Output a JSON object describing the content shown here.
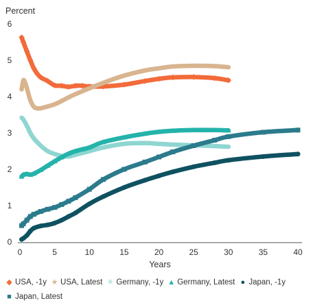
{
  "chart_data": {
    "type": "line",
    "ylabel": "Percent",
    "xlabel": "Years",
    "xlim": [
      0,
      40
    ],
    "ylim": [
      0,
      6
    ],
    "xticks": [
      0,
      5,
      10,
      15,
      20,
      25,
      30,
      35,
      40
    ],
    "yticks": [
      0,
      1,
      2,
      3,
      4,
      5,
      6
    ],
    "grid": false,
    "legend_position": "bottom",
    "series": [
      {
        "name": "USA, -1y",
        "color": "#f26b3a",
        "marker": "diamond",
        "x": [
          0.25,
          0.5,
          1,
          1.5,
          2,
          2.5,
          3,
          4,
          5,
          6,
          7,
          8,
          9,
          10,
          12,
          15,
          18,
          20,
          22,
          25,
          28,
          30
        ],
        "y": [
          5.63,
          5.5,
          5.25,
          5.0,
          4.78,
          4.63,
          4.53,
          4.43,
          4.31,
          4.3,
          4.27,
          4.3,
          4.3,
          4.28,
          4.28,
          4.33,
          4.43,
          4.49,
          4.53,
          4.54,
          4.51,
          4.45
        ]
      },
      {
        "name": "USA, Latest",
        "color": "#d8b48f",
        "marker": "star",
        "x": [
          0.25,
          0.5,
          0.75,
          1,
          1.5,
          2,
          2.5,
          3,
          4,
          5,
          6,
          7,
          8,
          10,
          12,
          15,
          18,
          20,
          22,
          25,
          28,
          30
        ],
        "y": [
          4.2,
          4.45,
          4.38,
          4.24,
          3.9,
          3.72,
          3.68,
          3.68,
          3.73,
          3.79,
          3.88,
          3.98,
          4.07,
          4.23,
          4.38,
          4.58,
          4.72,
          4.78,
          4.83,
          4.85,
          4.84,
          4.81
        ]
      },
      {
        "name": "Germany, -1y",
        "color": "#8fd6d2",
        "marker": "asterisk",
        "x": [
          0.25,
          0.5,
          1,
          1.5,
          2,
          3,
          4,
          5,
          6,
          7,
          8,
          9,
          10,
          12,
          15,
          18,
          20,
          22,
          25,
          28,
          30
        ],
        "y": [
          3.42,
          3.37,
          3.2,
          3.0,
          2.85,
          2.65,
          2.5,
          2.42,
          2.37,
          2.35,
          2.4,
          2.45,
          2.5,
          2.6,
          2.7,
          2.72,
          2.7,
          2.68,
          2.66,
          2.64,
          2.62
        ]
      },
      {
        "name": "Germany, Latest",
        "color": "#24b3aa",
        "marker": "triangle",
        "x": [
          0.25,
          0.5,
          1,
          1.5,
          2,
          3,
          4,
          5,
          6,
          7,
          8,
          9,
          10,
          12,
          15,
          18,
          20,
          22,
          25,
          28,
          30
        ],
        "y": [
          1.8,
          1.85,
          1.87,
          1.85,
          1.88,
          1.98,
          2.1,
          2.22,
          2.33,
          2.43,
          2.5,
          2.55,
          2.6,
          2.75,
          2.88,
          2.98,
          3.03,
          3.06,
          3.08,
          3.08,
          3.07
        ]
      },
      {
        "name": "Japan, -1y",
        "color": "#0f5161",
        "marker": "circle",
        "x": [
          0.25,
          0.5,
          1,
          1.5,
          2,
          3,
          4,
          5,
          6,
          7,
          8,
          10,
          12,
          15,
          18,
          20,
          22,
          25,
          28,
          30,
          35,
          40
        ],
        "y": [
          0.07,
          0.1,
          0.18,
          0.3,
          0.38,
          0.44,
          0.47,
          0.52,
          0.6,
          0.7,
          0.8,
          1.05,
          1.25,
          1.5,
          1.7,
          1.82,
          1.93,
          2.07,
          2.18,
          2.25,
          2.35,
          2.42
        ]
      },
      {
        "name": "Japan, Latest",
        "color": "#2b7b8c",
        "marker": "square",
        "x": [
          0.25,
          0.5,
          1,
          1.5,
          2,
          3,
          4,
          5,
          6,
          7,
          8,
          10,
          12,
          15,
          18,
          20,
          22,
          25,
          28,
          30,
          35,
          40
        ],
        "y": [
          0.45,
          0.5,
          0.6,
          0.7,
          0.76,
          0.84,
          0.9,
          0.95,
          1.03,
          1.12,
          1.22,
          1.45,
          1.72,
          2.0,
          2.2,
          2.34,
          2.48,
          2.65,
          2.8,
          2.9,
          3.02,
          3.08
        ]
      }
    ]
  }
}
